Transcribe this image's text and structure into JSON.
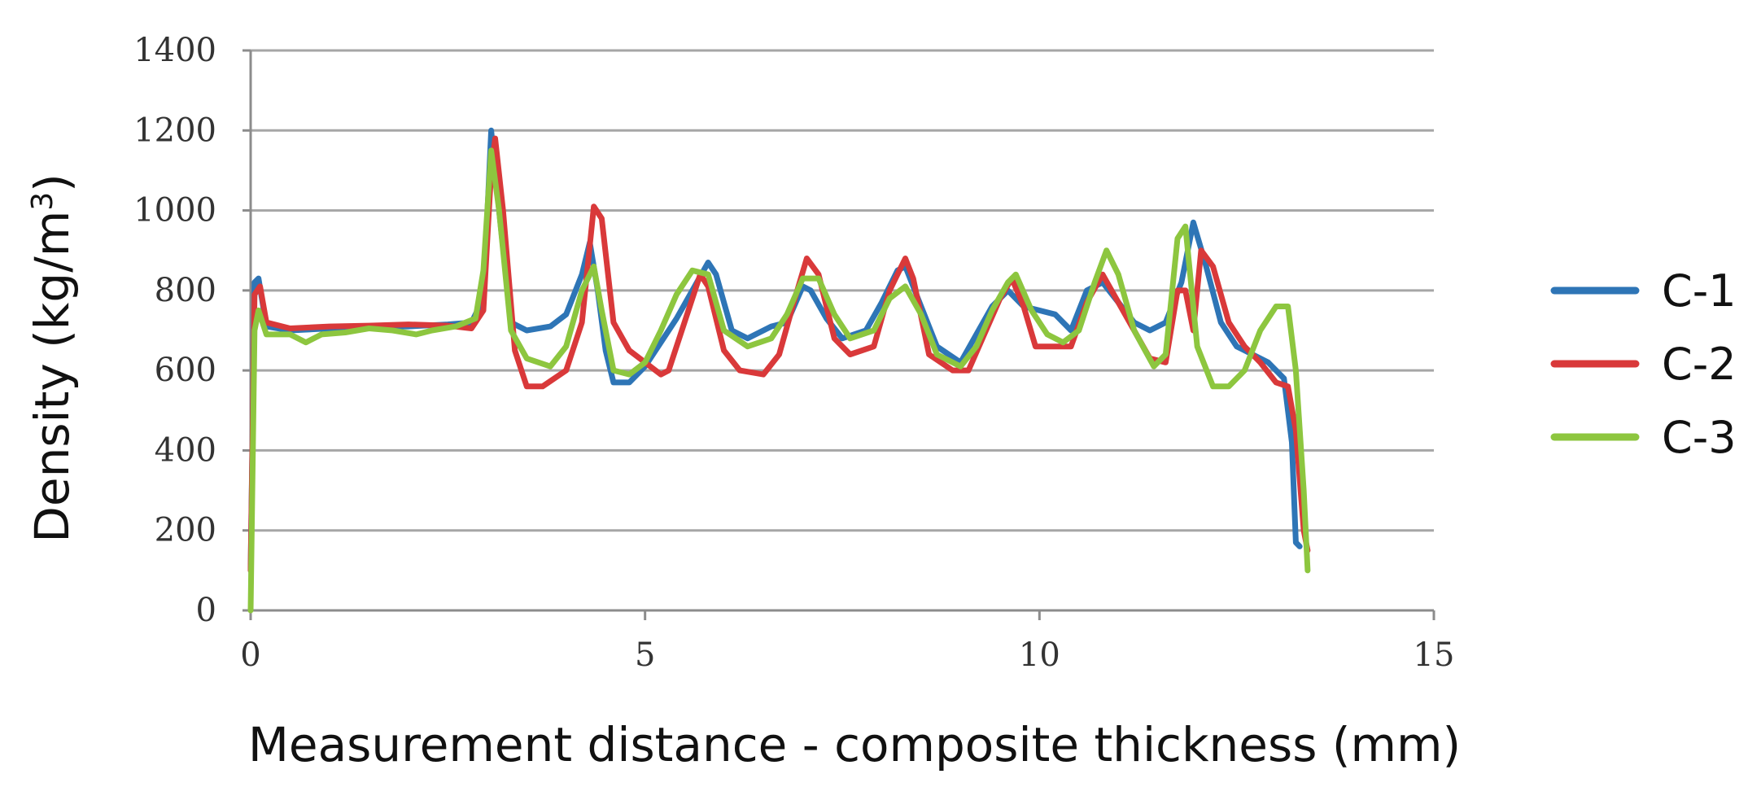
{
  "chart_data": {
    "type": "line",
    "xlabel": "Measurement distance - composite thickness (mm)",
    "ylabel_main": "Density (kg/m",
    "ylabel_sup": "3",
    "ylabel_close": ")",
    "xlim": [
      0,
      15
    ],
    "ylim": [
      0,
      1400
    ],
    "x_ticks": [
      0,
      5,
      10,
      15
    ],
    "y_ticks": [
      0,
      200,
      400,
      600,
      800,
      1000,
      1200,
      1400
    ],
    "grid": "horizontal",
    "legend_position": "right",
    "series": [
      {
        "name": "C-1",
        "color": "#2E75B6",
        "points": [
          [
            0,
            100
          ],
          [
            0.05,
            820
          ],
          [
            0.1,
            830
          ],
          [
            0.2,
            710
          ],
          [
            0.5,
            700
          ],
          [
            1,
            705
          ],
          [
            1.5,
            710
          ],
          [
            2,
            710
          ],
          [
            2.5,
            715
          ],
          [
            2.8,
            720
          ],
          [
            2.95,
            780
          ],
          [
            3.05,
            1200
          ],
          [
            3.15,
            1000
          ],
          [
            3.3,
            720
          ],
          [
            3.5,
            700
          ],
          [
            3.8,
            710
          ],
          [
            4.0,
            740
          ],
          [
            4.2,
            840
          ],
          [
            4.3,
            920
          ],
          [
            4.4,
            800
          ],
          [
            4.5,
            650
          ],
          [
            4.6,
            570
          ],
          [
            4.8,
            570
          ],
          [
            5.0,
            610
          ],
          [
            5.2,
            670
          ],
          [
            5.4,
            730
          ],
          [
            5.6,
            800
          ],
          [
            5.8,
            870
          ],
          [
            5.9,
            840
          ],
          [
            6.1,
            700
          ],
          [
            6.3,
            680
          ],
          [
            6.6,
            710
          ],
          [
            6.8,
            720
          ],
          [
            7.0,
            810
          ],
          [
            7.1,
            800
          ],
          [
            7.3,
            730
          ],
          [
            7.5,
            680
          ],
          [
            7.8,
            700
          ],
          [
            8.0,
            770
          ],
          [
            8.2,
            850
          ],
          [
            8.3,
            860
          ],
          [
            8.5,
            760
          ],
          [
            8.7,
            660
          ],
          [
            9.0,
            620
          ],
          [
            9.2,
            690
          ],
          [
            9.4,
            760
          ],
          [
            9.6,
            800
          ],
          [
            9.8,
            760
          ],
          [
            10.0,
            750
          ],
          [
            10.2,
            740
          ],
          [
            10.4,
            700
          ],
          [
            10.6,
            800
          ],
          [
            10.8,
            820
          ],
          [
            11.0,
            770
          ],
          [
            11.2,
            720
          ],
          [
            11.4,
            700
          ],
          [
            11.6,
            720
          ],
          [
            11.8,
            820
          ],
          [
            11.95,
            970
          ],
          [
            12.1,
            870
          ],
          [
            12.3,
            720
          ],
          [
            12.5,
            660
          ],
          [
            12.7,
            640
          ],
          [
            12.9,
            620
          ],
          [
            13.1,
            580
          ],
          [
            13.2,
            420
          ],
          [
            13.25,
            170
          ],
          [
            13.3,
            160
          ]
        ]
      },
      {
        "name": "C-2",
        "color": "#D9393A",
        "points": [
          [
            0,
            100
          ],
          [
            0.05,
            790
          ],
          [
            0.12,
            810
          ],
          [
            0.2,
            720
          ],
          [
            0.5,
            705
          ],
          [
            1,
            710
          ],
          [
            1.5,
            712
          ],
          [
            2,
            715
          ],
          [
            2.5,
            712
          ],
          [
            2.8,
            705
          ],
          [
            2.95,
            750
          ],
          [
            3.05,
            1100
          ],
          [
            3.1,
            1180
          ],
          [
            3.2,
            1000
          ],
          [
            3.35,
            650
          ],
          [
            3.5,
            560
          ],
          [
            3.7,
            560
          ],
          [
            4.0,
            600
          ],
          [
            4.2,
            720
          ],
          [
            4.35,
            1010
          ],
          [
            4.45,
            980
          ],
          [
            4.6,
            720
          ],
          [
            4.8,
            650
          ],
          [
            5.0,
            620
          ],
          [
            5.2,
            590
          ],
          [
            5.3,
            600
          ],
          [
            5.5,
            720
          ],
          [
            5.7,
            840
          ],
          [
            5.8,
            810
          ],
          [
            6.0,
            650
          ],
          [
            6.2,
            600
          ],
          [
            6.5,
            590
          ],
          [
            6.7,
            640
          ],
          [
            6.9,
            780
          ],
          [
            7.05,
            880
          ],
          [
            7.2,
            840
          ],
          [
            7.4,
            680
          ],
          [
            7.6,
            640
          ],
          [
            7.9,
            660
          ],
          [
            8.1,
            800
          ],
          [
            8.3,
            880
          ],
          [
            8.4,
            830
          ],
          [
            8.6,
            640
          ],
          [
            8.9,
            600
          ],
          [
            9.1,
            600
          ],
          [
            9.3,
            690
          ],
          [
            9.5,
            780
          ],
          [
            9.65,
            830
          ],
          [
            9.8,
            760
          ],
          [
            9.95,
            660
          ],
          [
            10.2,
            660
          ],
          [
            10.4,
            660
          ],
          [
            10.6,
            770
          ],
          [
            10.8,
            840
          ],
          [
            11.0,
            770
          ],
          [
            11.2,
            700
          ],
          [
            11.4,
            630
          ],
          [
            11.6,
            620
          ],
          [
            11.75,
            800
          ],
          [
            11.85,
            800
          ],
          [
            11.95,
            700
          ],
          [
            12.05,
            900
          ],
          [
            12.2,
            860
          ],
          [
            12.4,
            720
          ],
          [
            12.6,
            660
          ],
          [
            12.8,
            620
          ],
          [
            13.0,
            570
          ],
          [
            13.15,
            560
          ],
          [
            13.25,
            450
          ],
          [
            13.35,
            200
          ],
          [
            13.4,
            150
          ]
        ]
      },
      {
        "name": "C-3",
        "color": "#8DC63F",
        "points": [
          [
            0,
            0
          ],
          [
            0.05,
            700
          ],
          [
            0.1,
            750
          ],
          [
            0.2,
            690
          ],
          [
            0.5,
            690
          ],
          [
            0.7,
            670
          ],
          [
            0.9,
            690
          ],
          [
            1.2,
            695
          ],
          [
            1.5,
            705
          ],
          [
            1.8,
            700
          ],
          [
            2.1,
            690
          ],
          [
            2.3,
            700
          ],
          [
            2.6,
            710
          ],
          [
            2.85,
            730
          ],
          [
            2.95,
            850
          ],
          [
            3.05,
            1150
          ],
          [
            3.15,
            1000
          ],
          [
            3.3,
            700
          ],
          [
            3.5,
            630
          ],
          [
            3.8,
            610
          ],
          [
            4.0,
            660
          ],
          [
            4.2,
            800
          ],
          [
            4.35,
            860
          ],
          [
            4.45,
            750
          ],
          [
            4.6,
            600
          ],
          [
            4.8,
            590
          ],
          [
            5.0,
            620
          ],
          [
            5.2,
            700
          ],
          [
            5.4,
            790
          ],
          [
            5.6,
            850
          ],
          [
            5.8,
            840
          ],
          [
            6.0,
            700
          ],
          [
            6.3,
            660
          ],
          [
            6.6,
            680
          ],
          [
            6.8,
            740
          ],
          [
            7.0,
            830
          ],
          [
            7.2,
            830
          ],
          [
            7.4,
            740
          ],
          [
            7.6,
            680
          ],
          [
            7.9,
            700
          ],
          [
            8.1,
            780
          ],
          [
            8.3,
            810
          ],
          [
            8.5,
            740
          ],
          [
            8.7,
            640
          ],
          [
            9.0,
            610
          ],
          [
            9.2,
            660
          ],
          [
            9.4,
            750
          ],
          [
            9.6,
            820
          ],
          [
            9.7,
            840
          ],
          [
            9.9,
            750
          ],
          [
            10.1,
            690
          ],
          [
            10.3,
            670
          ],
          [
            10.5,
            700
          ],
          [
            10.7,
            820
          ],
          [
            10.85,
            900
          ],
          [
            11.0,
            840
          ],
          [
            11.2,
            700
          ],
          [
            11.45,
            610
          ],
          [
            11.6,
            640
          ],
          [
            11.75,
            930
          ],
          [
            11.85,
            960
          ],
          [
            12.0,
            660
          ],
          [
            12.2,
            560
          ],
          [
            12.4,
            560
          ],
          [
            12.6,
            600
          ],
          [
            12.8,
            700
          ],
          [
            13.0,
            760
          ],
          [
            13.15,
            760
          ],
          [
            13.25,
            600
          ],
          [
            13.35,
            300
          ],
          [
            13.4,
            100
          ]
        ]
      }
    ]
  }
}
